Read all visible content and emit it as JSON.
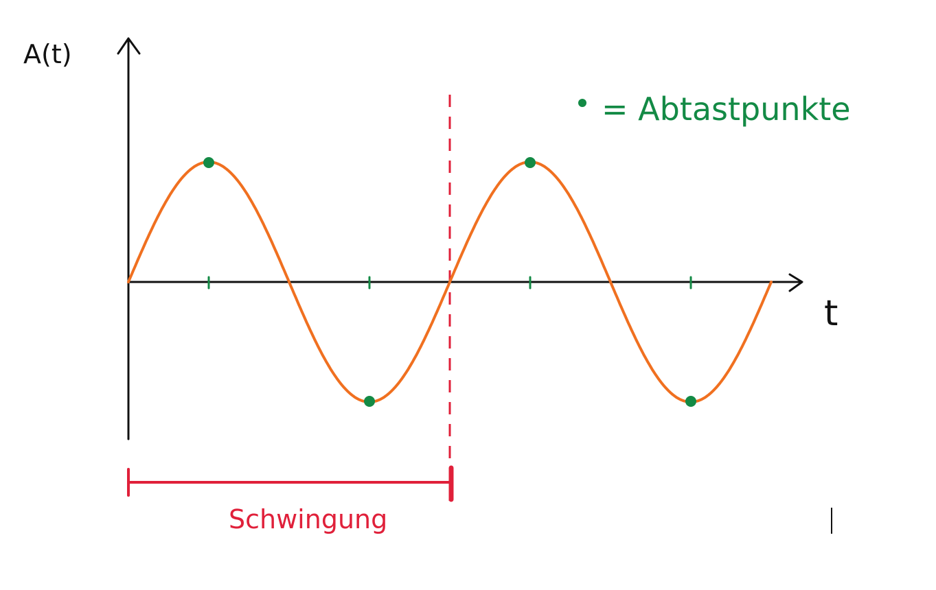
{
  "axes": {
    "y_label": "A(t)",
    "x_label": "t"
  },
  "wave": {
    "periods": 2,
    "amplitude": 1,
    "sample_phases": [
      0.25,
      0.75,
      1.25,
      1.75
    ],
    "tick_phases": [
      0.25,
      0.75,
      1.25,
      1.75
    ]
  },
  "legend": {
    "marker": "•",
    "text": "= Abtastpunkte"
  },
  "period_bracket": {
    "label": "Schwingung",
    "from_phase": 0,
    "to_phase": 1
  },
  "colors": {
    "wave": "#f07020",
    "sample": "#138a45",
    "period": "#e0203a",
    "axis": "#111111"
  }
}
